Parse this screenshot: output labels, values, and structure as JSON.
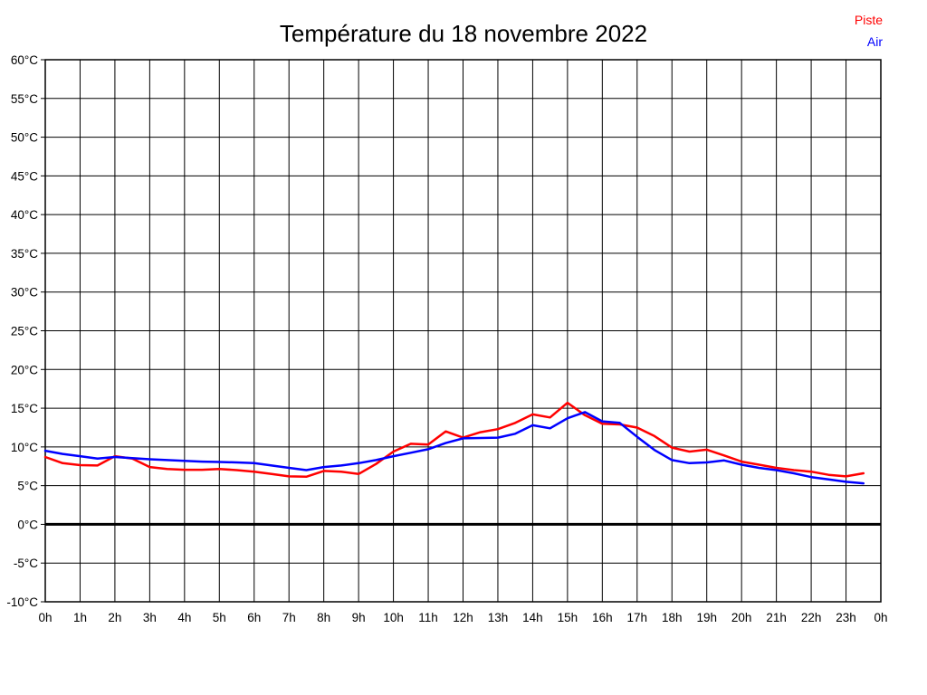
{
  "title": "Température du 18 novembre 2022",
  "legend": {
    "piste_label": "Piste",
    "air_label": "Air"
  },
  "colors": {
    "piste": "#ff0000",
    "air": "#0000ff",
    "grid": "#000000",
    "zero_line": "#000000",
    "background": "#ffffff",
    "text": "#000000"
  },
  "chart_data": {
    "type": "line",
    "title": "Température du 18 novembre 2022",
    "xlabel": "",
    "ylabel": "",
    "y_unit": "°C",
    "xlim": [
      0,
      24
    ],
    "ylim": [
      -10,
      60
    ],
    "y_tick_step": 5,
    "grid": true,
    "zero_line_bold": true,
    "legend_position": "top-right",
    "x_tick_labels": [
      "0h",
      "1h",
      "2h",
      "3h",
      "4h",
      "5h",
      "6h",
      "7h",
      "8h",
      "9h",
      "10h",
      "11h",
      "12h",
      "13h",
      "14h",
      "15h",
      "16h",
      "17h",
      "18h",
      "19h",
      "20h",
      "21h",
      "22h",
      "23h",
      "0h"
    ],
    "x": [
      0,
      0.5,
      1,
      1.5,
      2,
      2.5,
      3,
      3.5,
      4,
      4.5,
      5,
      5.5,
      6,
      6.5,
      7,
      7.5,
      8,
      8.5,
      9,
      9.5,
      10,
      10.5,
      11,
      11.5,
      12,
      12.5,
      13,
      13.5,
      14,
      14.5,
      15,
      15.5,
      16,
      16.5,
      17,
      17.5,
      18,
      18.5,
      19,
      19.5,
      20,
      20.5,
      21,
      21.5,
      22,
      22.5,
      23,
      23.5
    ],
    "series": [
      {
        "name": "Piste",
        "color": "#ff0000",
        "values": [
          8.7,
          7.9,
          7.65,
          7.6,
          8.8,
          8.5,
          7.4,
          7.15,
          7.05,
          7.05,
          7.15,
          7.0,
          6.8,
          6.5,
          6.2,
          6.15,
          6.9,
          6.8,
          6.5,
          7.8,
          9.4,
          10.4,
          10.3,
          12.0,
          11.2,
          11.9,
          12.3,
          13.1,
          14.2,
          13.8,
          15.7,
          14.1,
          13.0,
          12.9,
          12.5,
          11.4,
          9.9,
          9.4,
          9.65,
          8.9,
          8.1,
          7.7,
          7.3,
          7.0,
          6.8,
          6.4,
          6.2,
          6.6
        ]
      },
      {
        "name": "Air",
        "color": "#0000ff",
        "values": [
          9.5,
          9.1,
          8.8,
          8.5,
          8.7,
          8.55,
          8.4,
          8.3,
          8.2,
          8.1,
          8.05,
          8.0,
          7.9,
          7.6,
          7.3,
          7.0,
          7.4,
          7.6,
          7.9,
          8.3,
          8.8,
          9.25,
          9.7,
          10.5,
          11.1,
          11.15,
          11.2,
          11.7,
          12.8,
          12.4,
          13.7,
          14.5,
          13.3,
          13.1,
          11.3,
          9.6,
          8.3,
          7.9,
          8.0,
          8.25,
          7.7,
          7.3,
          7.0,
          6.6,
          6.1,
          5.8,
          5.5,
          5.3
        ]
      }
    ]
  }
}
